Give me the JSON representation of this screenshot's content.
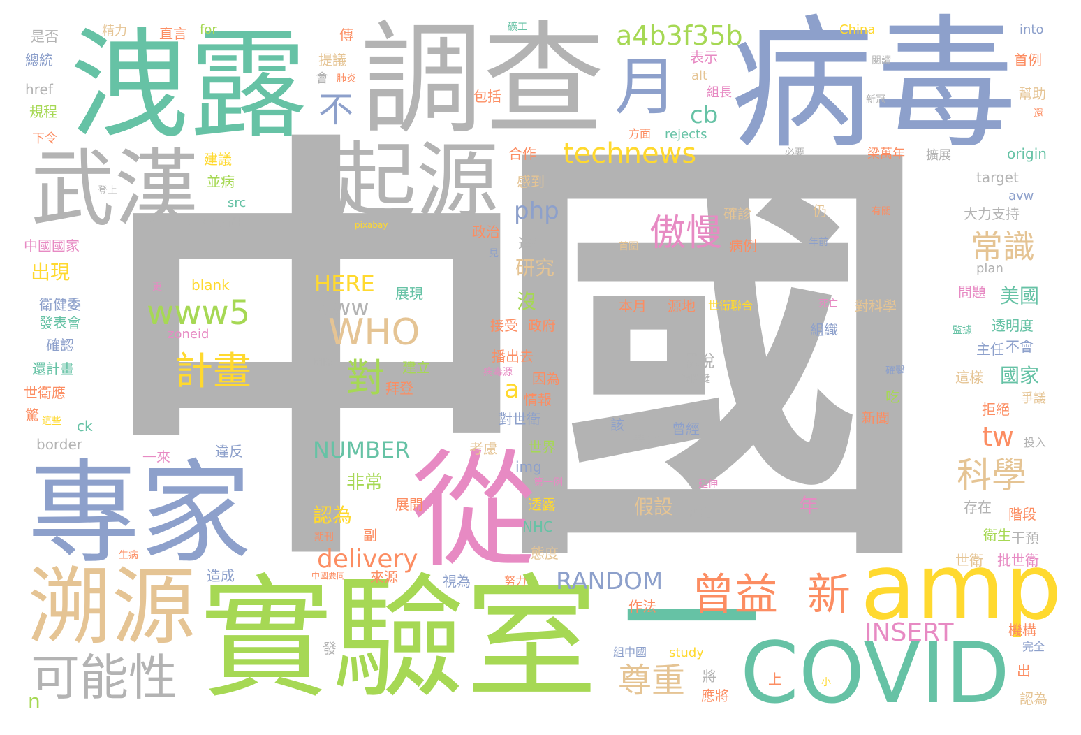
{
  "palette": {
    "gray": "#b3b3b3",
    "blue": "#8da0cb",
    "teal": "#66c2a5",
    "green": "#a6d854",
    "tan": "#e5c494",
    "pink": "#e78ac3",
    "orange": "#fc8d62",
    "yellow": "#ffd92f"
  },
  "words": [
    {
      "text": "中國",
      "color": "gray",
      "size": 5
    },
    {
      "text": "病毒",
      "color": "blue",
      "size": 4
    },
    {
      "text": "調查",
      "color": "gray",
      "size": 4
    },
    {
      "text": "洩露",
      "color": "teal",
      "size": 4
    },
    {
      "text": "實驗室",
      "color": "green",
      "size": 4
    },
    {
      "text": "專家",
      "color": "blue",
      "size": 4
    },
    {
      "text": "從",
      "color": "pink",
      "size": 4
    },
    {
      "text": "一",
      "color": "teal",
      "size": 4
    },
    {
      "text": "COVID",
      "color": "teal",
      "size": 3
    },
    {
      "text": "amp",
      "color": "yellow",
      "size": 3
    },
    {
      "text": "武漢",
      "color": "gray",
      "size": 3
    },
    {
      "text": "起源",
      "color": "gray",
      "size": 3
    },
    {
      "text": "溯源",
      "color": "tan",
      "size": 3
    },
    {
      "text": "月",
      "color": "blue",
      "size": 3
    },
    {
      "text": "可能性",
      "color": "gray",
      "size": 2
    },
    {
      "text": "曾益",
      "color": "orange",
      "size": 2
    },
    {
      "text": "新",
      "color": "orange",
      "size": 2
    },
    {
      "text": "a4b3f35b",
      "color": "green",
      "size": 2
    },
    {
      "text": "technews",
      "color": "yellow",
      "size": 2
    },
    {
      "text": "www5",
      "color": "green",
      "size": 2
    },
    {
      "text": "WHO",
      "color": "tan",
      "size": 2
    },
    {
      "text": "傲慢",
      "color": "pink",
      "size": 2
    },
    {
      "text": "常識",
      "color": "tan",
      "size": 2
    },
    {
      "text": "科學",
      "color": "tan",
      "size": 2
    },
    {
      "text": "計畫",
      "color": "yellow",
      "size": 2
    },
    {
      "text": "尊重",
      "color": "tan",
      "size": 2
    },
    {
      "text": "不",
      "color": "blue",
      "size": 2
    },
    {
      "text": "對",
      "color": "green",
      "size": 2
    },
    {
      "text": "delivery",
      "color": "orange",
      "size": 2
    },
    {
      "text": "RANDOM",
      "color": "blue",
      "size": 2
    },
    {
      "text": "NUMBER",
      "color": "teal",
      "size": 1
    },
    {
      "text": "INSERT",
      "color": "pink",
      "size": 1
    },
    {
      "text": "HERE",
      "color": "yellow",
      "size": 1
    },
    {
      "text": "www",
      "color": "gray",
      "size": 1
    },
    {
      "text": "php",
      "color": "blue",
      "size": 1
    },
    {
      "text": "cb",
      "color": "teal",
      "size": 1
    },
    {
      "text": "tw",
      "color": "orange",
      "size": 1
    },
    {
      "text": "a",
      "color": "yellow",
      "size": 1
    },
    {
      "text": "擺脫",
      "color": "gray",
      "size": 0
    },
    {
      "text": "源關鍵",
      "color": "gray",
      "size": 0
    }
  ],
  "small_words": [
    "是否",
    "精力",
    "直言",
    "for",
    "礦工",
    "傳",
    "China",
    "into",
    "總統",
    "提議",
    "表示",
    "閱讀",
    "首例",
    "href",
    "會",
    "肺炎",
    "alt",
    "組長",
    "包括",
    "新冠",
    "幫助",
    "規程",
    "還",
    "下令",
    "方面",
    "rejects",
    "必要",
    "origin",
    "梁萬年",
    "擴展",
    "合作",
    "建議",
    "感到",
    "登上",
    "並病",
    "target",
    "src",
    "avw",
    "pixabay",
    "有關",
    "專家間",
    "確診",
    "仍",
    "大力支持",
    "中國國家",
    "政治",
    "見",
    "年前",
    "進行",
    "首圍",
    "病例",
    "出現",
    "研究",
    "plan",
    "blank",
    "更",
    "美國",
    "問題",
    "本月",
    "源地",
    "世衛聯合",
    "展現",
    "沒",
    "接受",
    "政府",
    "死亡",
    "對科學",
    "衛健委",
    "透明度",
    "發表會",
    "zoneid",
    "確認",
    "組織",
    "主任",
    "不會",
    "國際",
    "播出去",
    "還計畫",
    "建立",
    "病毒源",
    "確鑿",
    "這樣",
    "國家",
    "世衛應",
    "因為",
    "拜登",
    "吃",
    "爭議",
    "驚",
    "情報",
    "新聞",
    "拒絕",
    "這些",
    "ck",
    "對世衛",
    "該",
    "border",
    "要求",
    "曾經",
    "違反",
    "考慮",
    "世界",
    "投入",
    "一來",
    "img",
    "第一例",
    "非常",
    "延伸",
    "存在",
    "展開",
    "透露",
    "否定",
    "年",
    "階段",
    "認為",
    "期刊",
    "NHC",
    "衛生",
    "副",
    "干預",
    "生病",
    "態度",
    "世衛",
    "批世衛",
    "造成",
    "中國要同",
    "來源",
    "視為",
    "努力",
    "作法",
    "機構",
    "發",
    "組中國",
    "study",
    "將",
    "完全",
    "上",
    "小",
    "應將",
    "出",
    "n",
    "認為",
    "假設",
    "監據"
  ]
}
